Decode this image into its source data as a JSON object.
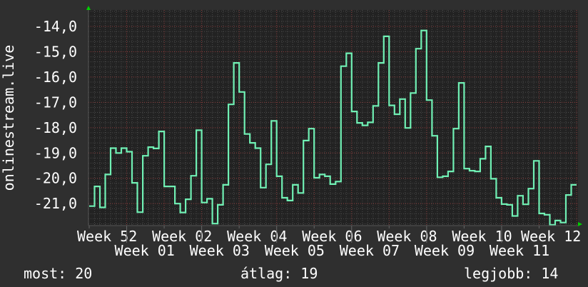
{
  "chart_data": {
    "type": "line",
    "step": true,
    "ylabel": "onlinestream.live",
    "ylim": [
      -21.87,
      -13.35
    ],
    "yticks": [
      -14,
      -15,
      -16,
      -17,
      -18,
      -19,
      -20,
      -21
    ],
    "ytick_labels": [
      "-14,0",
      "-15,0",
      "-16,0",
      "-17,0",
      "-18,0",
      "-19,0",
      "-20,0",
      "-21,0"
    ],
    "xtick_labels": [
      "Week 52",
      "Week 01",
      "Week 02",
      "Week 03",
      "Week 04",
      "Week 05",
      "Week 06",
      "Week 07",
      "Week 08",
      "Week 09",
      "Week 10",
      "Week 11",
      "Week 12"
    ],
    "grid": true,
    "colors": {
      "line": "#70f0b4",
      "plot_bg": "#222222",
      "page_bg": "#2f2f2f",
      "major_grid": "#8a3a3a",
      "minor_grid": "#4a4a4a",
      "axis_arrow": "#00d000"
    },
    "values": [
      -21.1,
      -20.32,
      -21.15,
      -19.85,
      -18.81,
      -19.0,
      -18.81,
      -18.95,
      -20.18,
      -21.34,
      -19.11,
      -18.77,
      -18.82,
      -18.15,
      -20.32,
      -20.32,
      -21.0,
      -21.35,
      -20.83,
      -19.9,
      -18.1,
      -20.96,
      -20.81,
      -21.79,
      -21.05,
      -20.26,
      -17.08,
      -15.44,
      -16.59,
      -18.25,
      -18.6,
      -18.81,
      -20.37,
      -19.45,
      -17.73,
      -19.92,
      -20.77,
      -20.88,
      -20.26,
      -20.58,
      -18.51,
      -18.04,
      -19.98,
      -19.85,
      -19.92,
      -20.23,
      -20.13,
      -15.57,
      -15.06,
      -17.36,
      -17.81,
      -17.91,
      -17.79,
      -17.14,
      -15.44,
      -14.39,
      -17.12,
      -17.47,
      -16.87,
      -18.01,
      -16.63,
      -14.88,
      -14.16,
      -16.91,
      -18.32,
      -19.96,
      -19.92,
      -19.73,
      -18.04,
      -16.23,
      -19.62,
      -19.7,
      -19.73,
      -19.23,
      -18.74,
      -20.02,
      -20.77,
      -21.02,
      -21.05,
      -21.49,
      -20.69,
      -21.03,
      -20.41,
      -19.31,
      -21.39,
      -21.44,
      -21.85,
      -21.67,
      -21.75,
      -20.66,
      -20.26
    ]
  },
  "summary": {
    "current": "most: 20",
    "average": "átlag: 19",
    "best": "legjobb: 14"
  }
}
